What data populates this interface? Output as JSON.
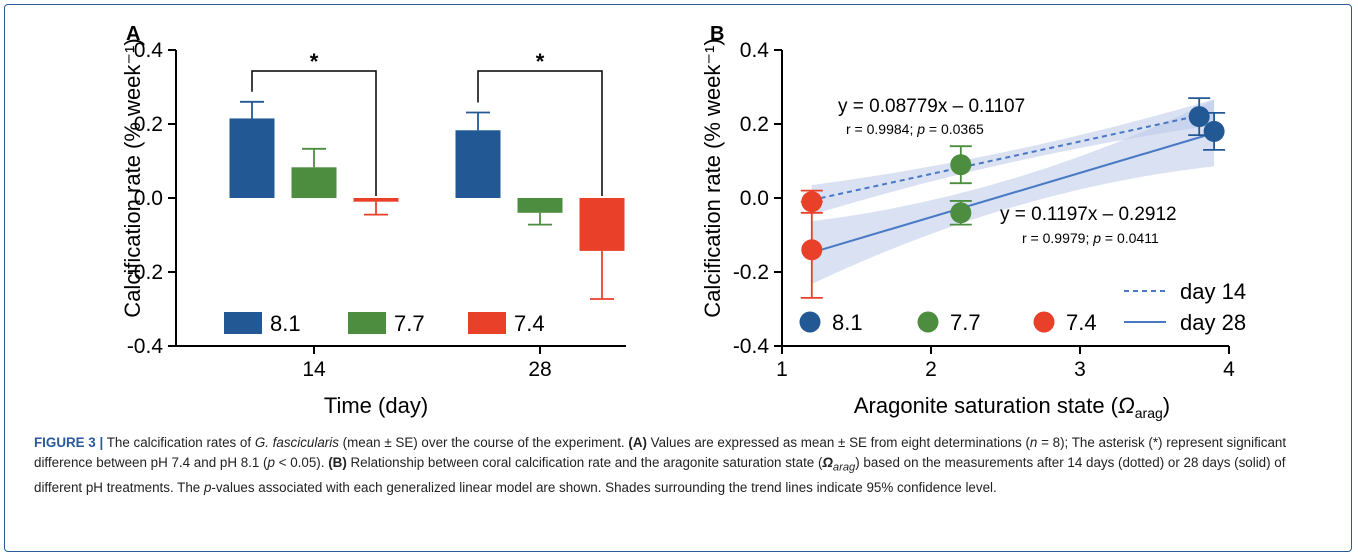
{
  "colors": {
    "ph81": "#225893",
    "ph77": "#4c8d3f",
    "ph74": "#e94129",
    "fit": "#4979c4",
    "band": "#b9c8ea",
    "frame": "#2a5a9a"
  },
  "chart_data": [
    {
      "panel": "A",
      "type": "bar",
      "xlabel": "Time (day)",
      "ylabel": "Calcification rate (% week⁻¹)",
      "ylim": [
        -0.4,
        0.4
      ],
      "yticks": [
        "0.4",
        "0.2",
        "0.0",
        "-0.2",
        "-0.4"
      ],
      "categories": [
        "14",
        "28"
      ],
      "series": [
        {
          "name": "8.1",
          "values": [
            0.215,
            0.183
          ],
          "se": [
            0.045,
            0.048
          ]
        },
        {
          "name": "7.7",
          "values": [
            0.083,
            -0.04
          ],
          "se": [
            0.05,
            0.032
          ]
        },
        {
          "name": "7.4",
          "values": [
            -0.01,
            -0.143
          ],
          "se": [
            0.035,
            0.13
          ]
        }
      ],
      "significance": [
        "*",
        "*"
      ],
      "legend_position": "bottom"
    },
    {
      "panel": "B",
      "type": "scatter",
      "xlabel": "Aragonite saturation state (",
      "xlabel_symbol": "Ω",
      "xlabel_sub": "arag",
      "ylabel": "Calcification rate (% week⁻¹)",
      "xlim": [
        1,
        4
      ],
      "ylim": [
        -0.4,
        0.4
      ],
      "xticks": [
        "1",
        "2",
        "3",
        "4"
      ],
      "yticks": [
        "0.4",
        "0.2",
        "0.0",
        "-0.2",
        "-0.4"
      ],
      "points": [
        {
          "name": "8.1",
          "day": 14,
          "x": 3.8,
          "y": 0.22,
          "se": 0.05
        },
        {
          "name": "8.1",
          "day": 28,
          "x": 3.9,
          "y": 0.18,
          "se": 0.05
        },
        {
          "name": "7.7",
          "day": 14,
          "x": 2.2,
          "y": 0.09,
          "se": 0.05
        },
        {
          "name": "7.7",
          "day": 28,
          "x": 2.2,
          "y": -0.04,
          "se": 0.032
        },
        {
          "name": "7.4",
          "day": 14,
          "x": 1.2,
          "y": -0.01,
          "se": 0.03
        },
        {
          "name": "7.4",
          "day": 28,
          "x": 1.2,
          "y": -0.14,
          "se": 0.13
        }
      ],
      "fits": [
        {
          "name": "day 14",
          "slope": 0.08779,
          "intercept": -0.1107,
          "equation": "y = 0.08779x – 0.1107",
          "stats": "r = 0.9984; p = 0.0365"
        },
        {
          "name": "day 28",
          "slope": 0.1197,
          "intercept": -0.2912,
          "equation": "y = 0.1197x – 0.2912",
          "stats": "r = 0.9979; p = 0.0411"
        }
      ],
      "legend_series": [
        "8.1",
        "7.7",
        "7.4"
      ],
      "legend_fits": [
        "day 14",
        "day 28"
      ]
    }
  ],
  "caption": {
    "label": "FIGURE 3 |",
    "text_1": " The calcification rates of ",
    "species": "G. fascicularis",
    "text_2": " (mean ± SE) over the course of the experiment. ",
    "panel_a": "(A)",
    "text_3": " Values are expressed as mean ± SE from eight determinations (",
    "n_var": "n",
    "text_4": " = 8); The asterisk (*) represent significant difference between pH 7.4 and pH 8.1 (",
    "p_var": "p",
    "text_5": " < 0.05). ",
    "panel_b": "(B)",
    "text_6": " Relationship between coral calcification rate and the aragonite saturation state (",
    "omega": "Ω",
    "omega_sub": "arag",
    "text_7": ") based on the measurements after 14 days (dotted) or 28 days (solid) of different pH treatments. The ",
    "p_var_2": "p",
    "text_8": "-values associated with each generalized linear model are shown. Shades surrounding the trend lines indicate 95% confidence level."
  }
}
